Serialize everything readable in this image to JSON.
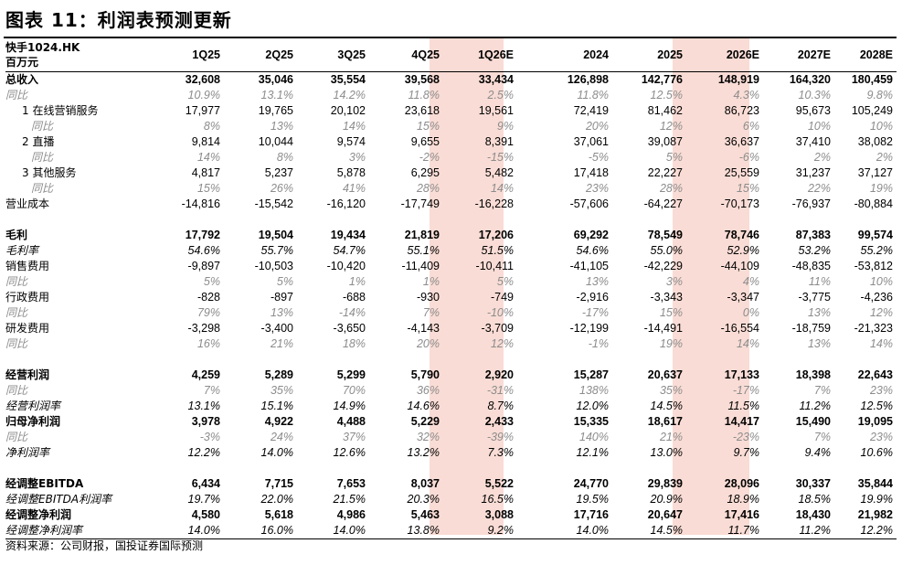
{
  "title": "图表 11：利润表预测更新",
  "header": {
    "ticker": "快手1024.HK",
    "unit": "百万元",
    "columns": [
      "1Q25",
      "2Q25",
      "3Q25",
      "4Q25",
      "1Q26E",
      "2024",
      "2025",
      "2026E",
      "2027E",
      "2028E"
    ]
  },
  "rows": [
    {
      "label": "总收入",
      "style": "b",
      "values": [
        "32,608",
        "35,046",
        "35,554",
        "39,568",
        "33,434",
        "126,898",
        "142,776",
        "148,919",
        "164,320",
        "180,459"
      ]
    },
    {
      "label": "同比",
      "style": "ig",
      "values": [
        "10.9%",
        "13.1%",
        "14.2%",
        "11.8%",
        "2.5%",
        "11.8%",
        "12.5%",
        "4.3%",
        "10.3%",
        "9.8%"
      ]
    },
    {
      "label": "1 在线营销服务",
      "style": "ind1",
      "values": [
        "17,977",
        "19,765",
        "20,102",
        "23,618",
        "19,561",
        "72,419",
        "81,462",
        "86,723",
        "95,673",
        "105,249"
      ]
    },
    {
      "label": "同比",
      "style": "ig2",
      "values": [
        "8%",
        "13%",
        "14%",
        "15%",
        "9%",
        "20%",
        "12%",
        "6%",
        "10%",
        "10%"
      ]
    },
    {
      "label": "2 直播",
      "style": "ind1",
      "values": [
        "9,814",
        "10,044",
        "9,574",
        "9,655",
        "8,391",
        "37,061",
        "39,087",
        "36,637",
        "37,410",
        "38,082"
      ]
    },
    {
      "label": "同比",
      "style": "ig2",
      "values": [
        "14%",
        "8%",
        "3%",
        "-2%",
        "-15%",
        "-5%",
        "5%",
        "-6%",
        "2%",
        "2%"
      ]
    },
    {
      "label": "3 其他服务",
      "style": "ind1",
      "values": [
        "4,817",
        "5,237",
        "5,878",
        "6,295",
        "5,482",
        "17,418",
        "22,227",
        "25,559",
        "31,237",
        "37,127"
      ]
    },
    {
      "label": "同比",
      "style": "ig2",
      "values": [
        "15%",
        "26%",
        "41%",
        "28%",
        "14%",
        "23%",
        "28%",
        "15%",
        "22%",
        "19%"
      ]
    },
    {
      "label": "营业成本",
      "style": "",
      "values": [
        "-14,816",
        "-15,542",
        "-16,120",
        "-17,749",
        "-16,228",
        "-57,606",
        "-64,227",
        "-70,173",
        "-76,937",
        "-80,884"
      ]
    },
    {
      "label": "",
      "style": "sp",
      "values": [
        "",
        "",
        "",
        "",
        "",
        "",
        "",
        "",
        "",
        ""
      ]
    },
    {
      "label": "毛利",
      "style": "b",
      "values": [
        "17,792",
        "19,504",
        "19,434",
        "21,819",
        "17,206",
        "69,292",
        "78,549",
        "78,746",
        "87,383",
        "99,574"
      ]
    },
    {
      "label": "毛利率",
      "style": "i",
      "values": [
        "54.6%",
        "55.7%",
        "54.7%",
        "55.1%",
        "51.5%",
        "54.6%",
        "55.0%",
        "52.9%",
        "53.2%",
        "55.2%"
      ]
    },
    {
      "label": "销售费用",
      "style": "",
      "values": [
        "-9,897",
        "-10,503",
        "-10,420",
        "-11,409",
        "-10,411",
        "-41,105",
        "-42,229",
        "-44,109",
        "-48,835",
        "-53,812"
      ]
    },
    {
      "label": "同比",
      "style": "ig",
      "values": [
        "5%",
        "5%",
        "1%",
        "1%",
        "5%",
        "13%",
        "3%",
        "4%",
        "11%",
        "10%"
      ]
    },
    {
      "label": "行政费用",
      "style": "",
      "values": [
        "-828",
        "-897",
        "-688",
        "-930",
        "-749",
        "-2,916",
        "-3,343",
        "-3,347",
        "-3,775",
        "-4,236"
      ]
    },
    {
      "label": "同比",
      "style": "ig",
      "values": [
        "79%",
        "13%",
        "-14%",
        "7%",
        "-10%",
        "-17%",
        "15%",
        "0%",
        "13%",
        "12%"
      ]
    },
    {
      "label": "研发费用",
      "style": "",
      "values": [
        "-3,298",
        "-3,400",
        "-3,650",
        "-4,143",
        "-3,709",
        "-12,199",
        "-14,491",
        "-16,554",
        "-18,759",
        "-21,323"
      ]
    },
    {
      "label": "同比",
      "style": "ig",
      "values": [
        "16%",
        "21%",
        "18%",
        "20%",
        "12%",
        "-1%",
        "19%",
        "14%",
        "13%",
        "14%"
      ]
    },
    {
      "label": "",
      "style": "sp",
      "values": [
        "",
        "",
        "",
        "",
        "",
        "",
        "",
        "",
        "",
        ""
      ]
    },
    {
      "label": "经营利润",
      "style": "b",
      "values": [
        "4,259",
        "5,289",
        "5,299",
        "5,790",
        "2,920",
        "15,287",
        "20,637",
        "17,133",
        "18,398",
        "22,643"
      ]
    },
    {
      "label": "同比",
      "style": "ig",
      "values": [
        "7%",
        "35%",
        "70%",
        "36%",
        "-31%",
        "138%",
        "35%",
        "-17%",
        "7%",
        "23%"
      ]
    },
    {
      "label": "经营利润率",
      "style": "i",
      "values": [
        "13.1%",
        "15.1%",
        "14.9%",
        "14.6%",
        "8.7%",
        "12.0%",
        "14.5%",
        "11.5%",
        "11.2%",
        "12.5%"
      ]
    },
    {
      "label": "归母净利润",
      "style": "b",
      "values": [
        "3,978",
        "4,922",
        "4,488",
        "5,229",
        "2,433",
        "15,335",
        "18,617",
        "14,417",
        "15,490",
        "19,095"
      ]
    },
    {
      "label": "同比",
      "style": "ig",
      "values": [
        "-3%",
        "24%",
        "37%",
        "32%",
        "-39%",
        "140%",
        "21%",
        "-23%",
        "7%",
        "23%"
      ]
    },
    {
      "label": "净利润率",
      "style": "i",
      "values": [
        "12.2%",
        "14.0%",
        "12.6%",
        "13.2%",
        "7.3%",
        "12.1%",
        "13.0%",
        "9.7%",
        "9.4%",
        "10.6%"
      ]
    },
    {
      "label": "",
      "style": "sp",
      "values": [
        "",
        "",
        "",
        "",
        "",
        "",
        "",
        "",
        "",
        ""
      ]
    },
    {
      "label": "经调整EBITDA",
      "style": "b",
      "values": [
        "6,434",
        "7,715",
        "7,653",
        "8,037",
        "5,522",
        "24,770",
        "29,839",
        "28,096",
        "30,337",
        "35,844"
      ]
    },
    {
      "label": "经调整EBITDA利润率",
      "style": "i",
      "values": [
        "19.7%",
        "22.0%",
        "21.5%",
        "20.3%",
        "16.5%",
        "19.5%",
        "20.9%",
        "18.9%",
        "18.5%",
        "19.9%"
      ]
    },
    {
      "label": "经调整净利润",
      "style": "b",
      "values": [
        "4,580",
        "5,618",
        "4,986",
        "5,463",
        "3,088",
        "17,716",
        "20,647",
        "17,416",
        "18,430",
        "21,982"
      ]
    },
    {
      "label": "经调整净利润率",
      "style": "i",
      "values": [
        "14.0%",
        "16.0%",
        "14.0%",
        "13.8%",
        "9.2%",
        "14.0%",
        "14.5%",
        "11.7%",
        "11.2%",
        "12.2%"
      ]
    }
  ],
  "footer": "资料来源：公司财报，国投证券国际预测",
  "colors": {
    "highlight": "#f9dcd5",
    "muted": "#8c8c8c"
  }
}
